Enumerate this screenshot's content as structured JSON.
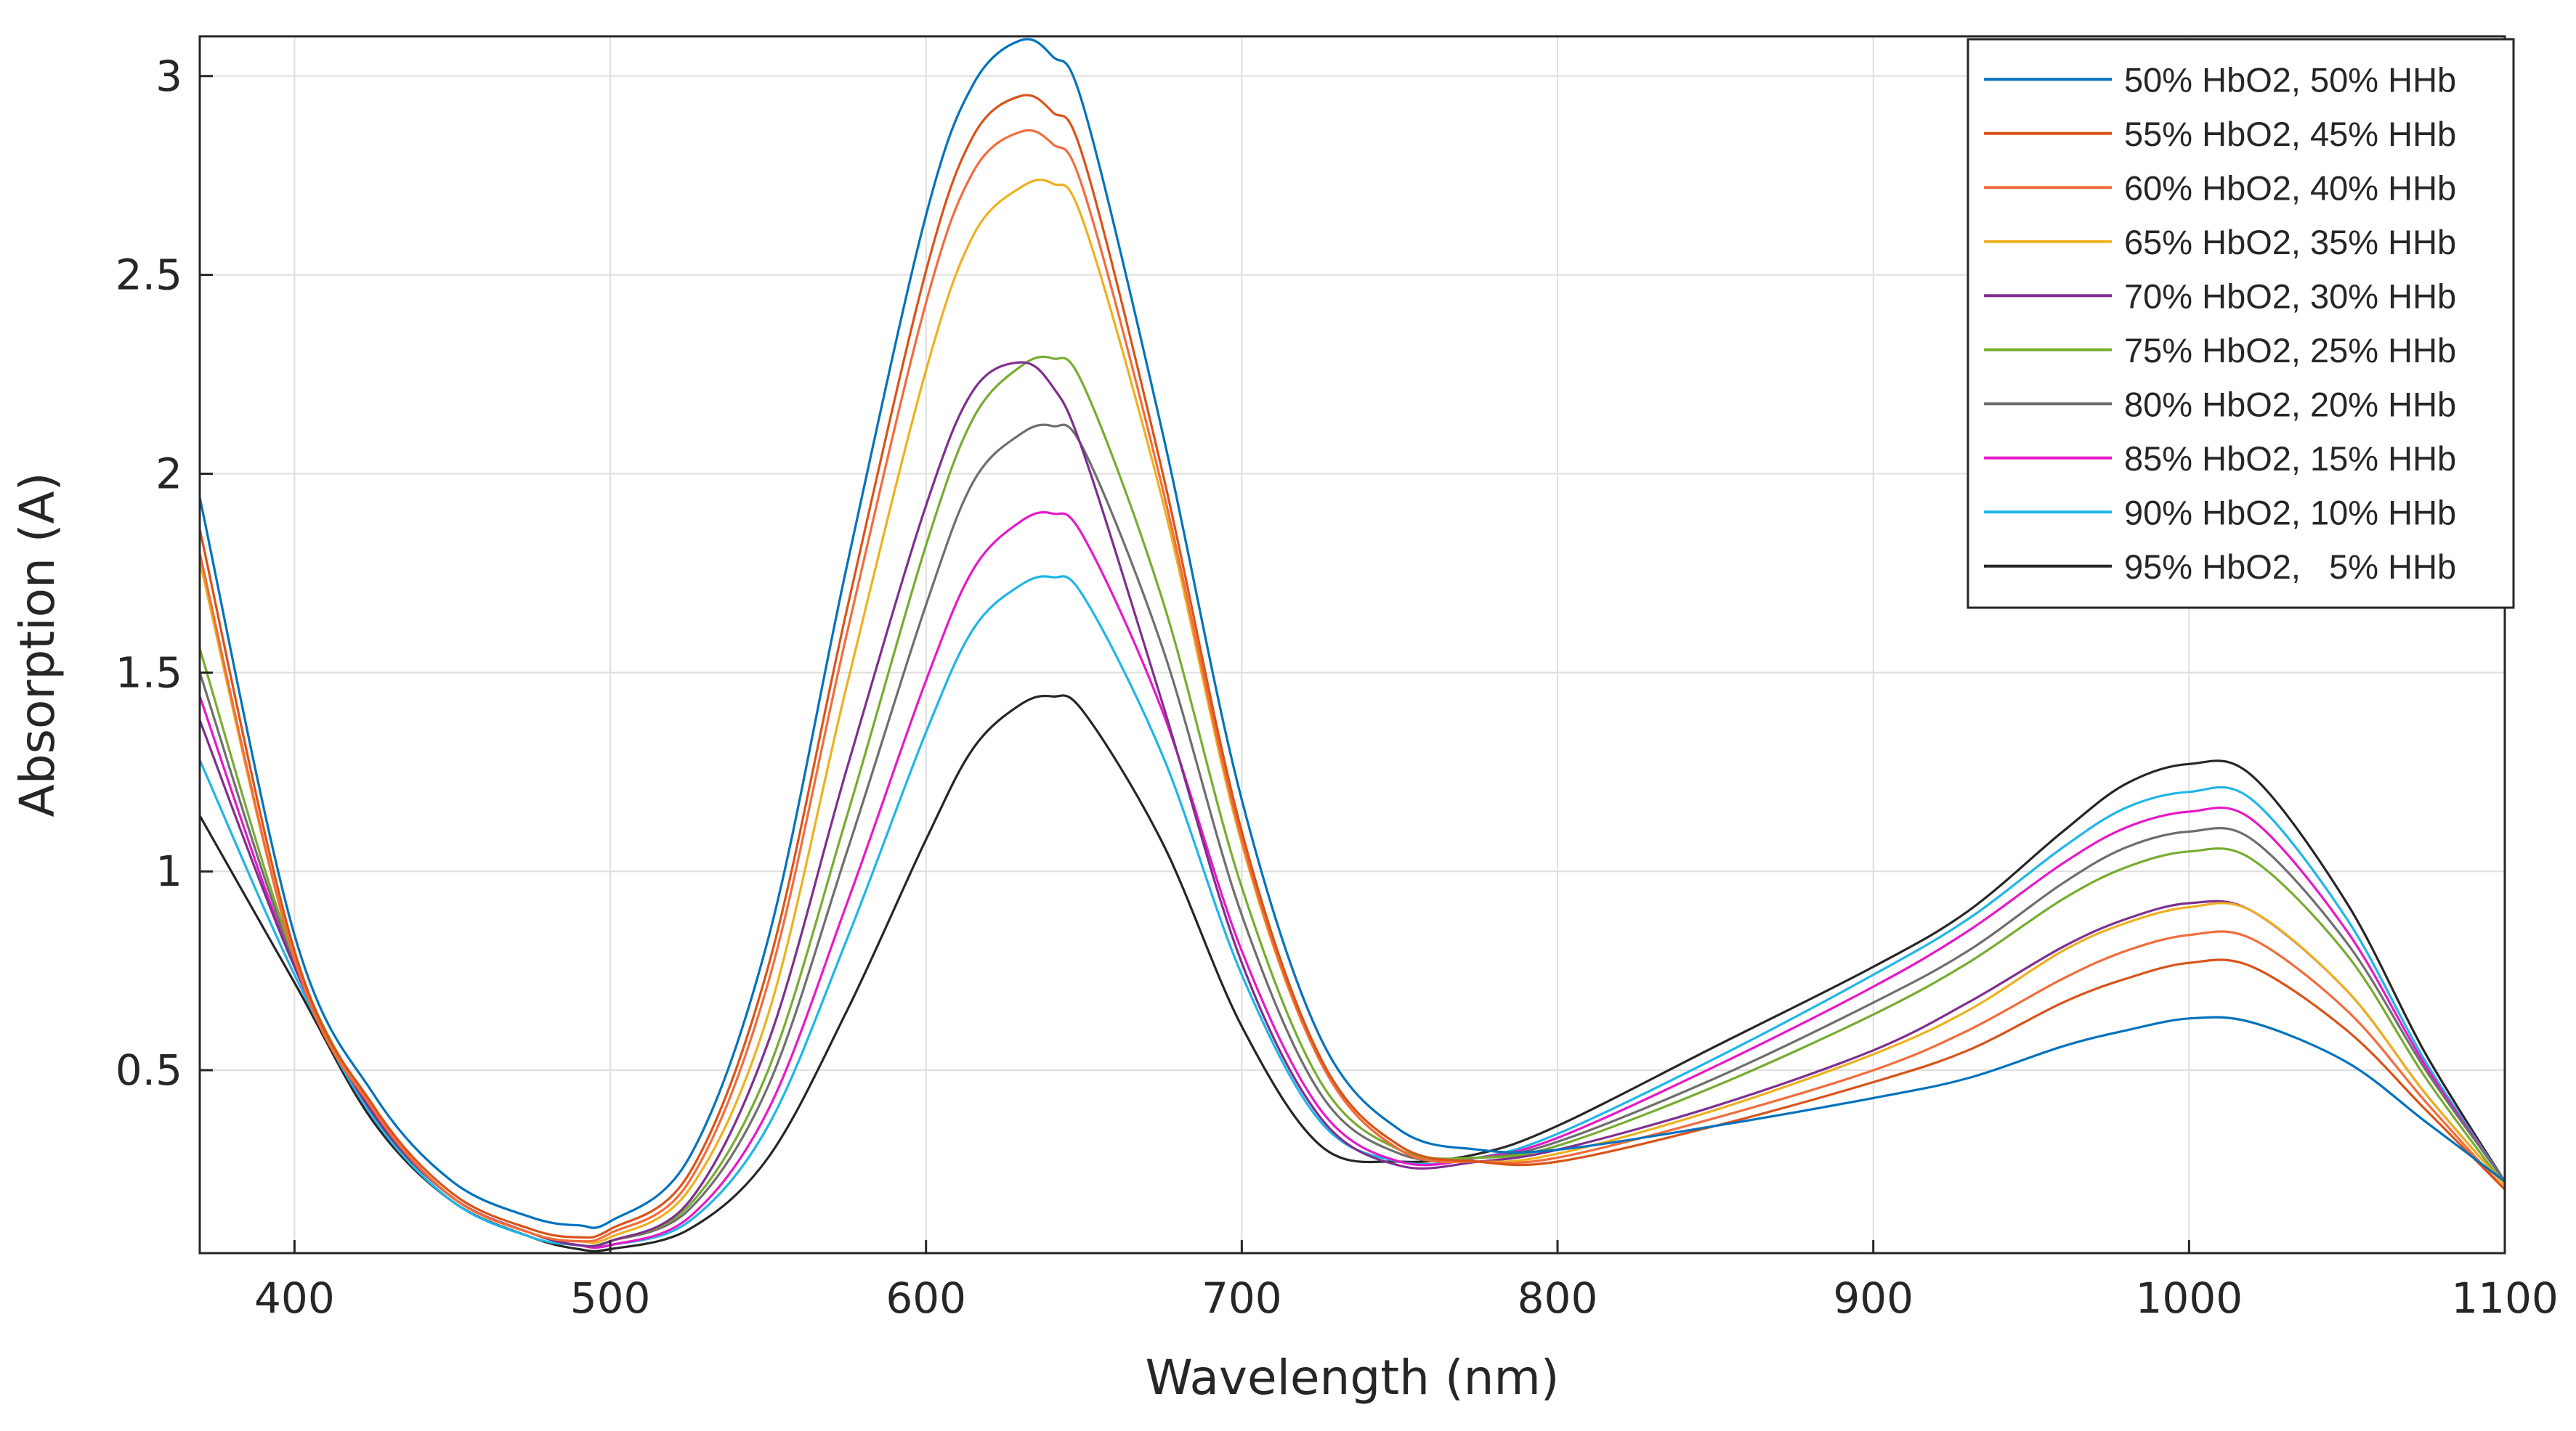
{
  "chart_data": {
    "type": "line",
    "title": "",
    "xlabel": "Wavelength (nm)",
    "ylabel": "Absorption (A)",
    "xlim": [
      370,
      1100
    ],
    "ylim": [
      0.04,
      3.1
    ],
    "xticks": [
      400,
      500,
      600,
      700,
      800,
      900,
      1000,
      1100
    ],
    "xtick_labels": [
      "400",
      "500",
      "600",
      "700",
      "800",
      "900",
      "1000",
      "1100"
    ],
    "yticks": [
      0.5,
      1,
      1.5,
      2,
      2.5,
      3
    ],
    "ytick_labels": [
      "0.5",
      "1",
      "1.5",
      "2",
      "2.5",
      "3"
    ],
    "grid": true,
    "legend_position": "top-right",
    "x": [
      370,
      400,
      425,
      450,
      475,
      490,
      500,
      525,
      550,
      575,
      600,
      615,
      630,
      640,
      650,
      675,
      700,
      725,
      750,
      775,
      800,
      850,
      900,
      930,
      960,
      980,
      1000,
      1020,
      1050,
      1075,
      1100
    ],
    "series": [
      {
        "name": "50% HbO2, 50% HHb",
        "color": "#0072BD",
        "values": [
          1.94,
          0.84,
          0.44,
          0.22,
          0.13,
          0.11,
          0.12,
          0.28,
          0.83,
          1.77,
          2.65,
          2.98,
          3.09,
          3.05,
          2.92,
          2.1,
          1.18,
          0.58,
          0.35,
          0.3,
          0.3,
          0.36,
          0.43,
          0.48,
          0.56,
          0.6,
          0.63,
          0.62,
          0.52,
          0.37,
          0.22
        ]
      },
      {
        "name": "55% HbO2, 45% HHb",
        "color": "#D95319",
        "values": [
          1.86,
          0.8,
          0.41,
          0.19,
          0.1,
          0.08,
          0.1,
          0.24,
          0.76,
          1.66,
          2.51,
          2.85,
          2.95,
          2.91,
          2.79,
          2.0,
          1.1,
          0.53,
          0.31,
          0.27,
          0.27,
          0.36,
          0.47,
          0.55,
          0.67,
          0.73,
          0.77,
          0.76,
          0.6,
          0.4,
          0.2
        ]
      },
      {
        "name": "60% HbO2, 40% HHb",
        "color": "#F26C3C",
        "values": [
          1.8,
          0.78,
          0.4,
          0.18,
          0.09,
          0.07,
          0.09,
          0.22,
          0.72,
          1.6,
          2.43,
          2.76,
          2.86,
          2.83,
          2.71,
          1.96,
          1.08,
          0.52,
          0.3,
          0.27,
          0.28,
          0.38,
          0.5,
          0.6,
          0.73,
          0.8,
          0.84,
          0.83,
          0.65,
          0.42,
          0.2
        ]
      },
      {
        "name": "65% HbO2, 35% HHb",
        "color": "#EDB120",
        "values": [
          1.78,
          0.78,
          0.4,
          0.18,
          0.09,
          0.07,
          0.08,
          0.2,
          0.64,
          1.47,
          2.26,
          2.6,
          2.72,
          2.73,
          2.63,
          1.93,
          1.07,
          0.52,
          0.3,
          0.27,
          0.29,
          0.4,
          0.54,
          0.65,
          0.8,
          0.87,
          0.91,
          0.9,
          0.7,
          0.44,
          0.21
        ]
      },
      {
        "name": "70% HbO2, 30% HHb",
        "color": "#7E2F8E",
        "values": [
          1.38,
          0.76,
          0.39,
          0.18,
          0.09,
          0.06,
          0.07,
          0.17,
          0.57,
          1.26,
          1.92,
          2.21,
          2.28,
          2.22,
          2.05,
          1.42,
          0.77,
          0.38,
          0.26,
          0.27,
          0.3,
          0.41,
          0.55,
          0.67,
          0.81,
          0.88,
          0.92,
          0.9,
          0.7,
          0.44,
          0.21
        ]
      },
      {
        "name": "75% HbO2, 25% HHb",
        "color": "#77AC30",
        "values": [
          1.56,
          0.78,
          0.4,
          0.18,
          0.09,
          0.06,
          0.07,
          0.16,
          0.5,
          1.14,
          1.82,
          2.14,
          2.27,
          2.29,
          2.22,
          1.68,
          0.96,
          0.47,
          0.3,
          0.28,
          0.31,
          0.46,
          0.64,
          0.77,
          0.93,
          1.01,
          1.05,
          1.03,
          0.79,
          0.48,
          0.21
        ]
      },
      {
        "name": "80% HbO2, 20% HHb",
        "color": "#6E6E6E",
        "values": [
          1.5,
          0.77,
          0.39,
          0.18,
          0.09,
          0.06,
          0.07,
          0.15,
          0.46,
          1.05,
          1.67,
          1.98,
          2.1,
          2.12,
          2.06,
          1.56,
          0.89,
          0.44,
          0.29,
          0.28,
          0.32,
          0.48,
          0.67,
          0.8,
          0.97,
          1.06,
          1.1,
          1.08,
          0.82,
          0.5,
          0.22
        ]
      },
      {
        "name": "85% HbO2, 15% HHb",
        "color": "#E619C8",
        "values": [
          1.44,
          0.76,
          0.39,
          0.18,
          0.09,
          0.06,
          0.06,
          0.13,
          0.4,
          0.92,
          1.48,
          1.76,
          1.88,
          1.9,
          1.84,
          1.4,
          0.8,
          0.4,
          0.27,
          0.28,
          0.33,
          0.51,
          0.71,
          0.85,
          1.02,
          1.11,
          1.15,
          1.13,
          0.85,
          0.51,
          0.22
        ]
      },
      {
        "name": "90% HbO2, 10% HHb",
        "color": "#1FB6E6",
        "values": [
          1.28,
          0.74,
          0.38,
          0.17,
          0.08,
          0.06,
          0.06,
          0.12,
          0.36,
          0.83,
          1.35,
          1.61,
          1.72,
          1.74,
          1.69,
          1.29,
          0.74,
          0.37,
          0.27,
          0.28,
          0.34,
          0.53,
          0.74,
          0.88,
          1.06,
          1.16,
          1.2,
          1.18,
          0.88,
          0.52,
          0.22
        ]
      },
      {
        "name": "95% HbO2,   5% HHb",
        "color": "#262626",
        "values": [
          1.14,
          0.72,
          0.37,
          0.17,
          0.08,
          0.05,
          0.05,
          0.1,
          0.28,
          0.65,
          1.08,
          1.31,
          1.42,
          1.44,
          1.4,
          1.07,
          0.61,
          0.31,
          0.27,
          0.29,
          0.36,
          0.56,
          0.76,
          0.9,
          1.1,
          1.22,
          1.27,
          1.24,
          0.92,
          0.54,
          0.22
        ]
      }
    ]
  }
}
